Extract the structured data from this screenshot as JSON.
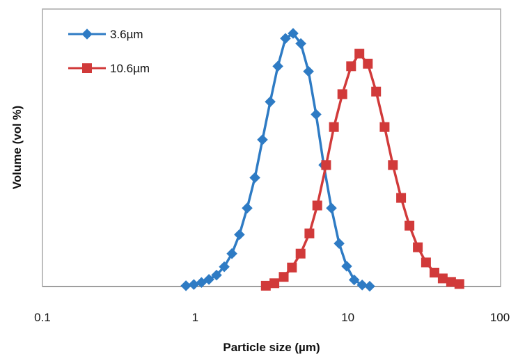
{
  "chart_data": {
    "type": "line",
    "title": "",
    "xlabel": "Particle size (µm)",
    "ylabel": "Volume (vol %)",
    "x_scale": "log",
    "xlim": [
      0.1,
      100
    ],
    "ylim": [
      0,
      100
    ],
    "x_ticks": [
      0.1,
      1,
      10,
      100
    ],
    "x_tick_labels": [
      "0.1",
      "1",
      "10",
      "100"
    ],
    "y_ticks_shown": false,
    "grid": false,
    "legend_position": "top-left",
    "series": [
      {
        "name": "3.6µm",
        "color": "#2e7bc4",
        "marker": "diamond",
        "points": [
          [
            0.87,
            0.3
          ],
          [
            0.98,
            0.8
          ],
          [
            1.1,
            1.6
          ],
          [
            1.23,
            2.8
          ],
          [
            1.38,
            4.5
          ],
          [
            1.55,
            7.8
          ],
          [
            1.74,
            13
          ],
          [
            1.95,
            20.5
          ],
          [
            2.19,
            31
          ],
          [
            2.46,
            43
          ],
          [
            2.76,
            58
          ],
          [
            3.1,
            73
          ],
          [
            3.48,
            87
          ],
          [
            3.9,
            98
          ],
          [
            4.38,
            100
          ],
          [
            4.92,
            96
          ],
          [
            5.52,
            85
          ],
          [
            6.19,
            68
          ],
          [
            6.95,
            48
          ],
          [
            7.8,
            31
          ],
          [
            8.76,
            17
          ],
          [
            9.83,
            8
          ],
          [
            11.0,
            2.6
          ],
          [
            12.4,
            0.6
          ],
          [
            13.9,
            0.1
          ]
        ]
      },
      {
        "name": "10.6µm",
        "color": "#d13a3a",
        "marker": "square",
        "points": [
          [
            2.9,
            0.3
          ],
          [
            3.3,
            1.3
          ],
          [
            3.8,
            3.8
          ],
          [
            4.3,
            7.5
          ],
          [
            4.9,
            13
          ],
          [
            5.6,
            21
          ],
          [
            6.3,
            32
          ],
          [
            7.2,
            48
          ],
          [
            8.1,
            63
          ],
          [
            9.2,
            76
          ],
          [
            10.5,
            87
          ],
          [
            11.9,
            92
          ],
          [
            13.5,
            88
          ],
          [
            15.3,
            77
          ],
          [
            17.4,
            63
          ],
          [
            19.7,
            48
          ],
          [
            22.3,
            35
          ],
          [
            25.3,
            24
          ],
          [
            28.7,
            15.5
          ],
          [
            32.5,
            9.5
          ],
          [
            36.9,
            5.5
          ],
          [
            41.8,
            3.2
          ],
          [
            47.4,
            1.8
          ],
          [
            53.7,
            1
          ]
        ]
      }
    ]
  }
}
